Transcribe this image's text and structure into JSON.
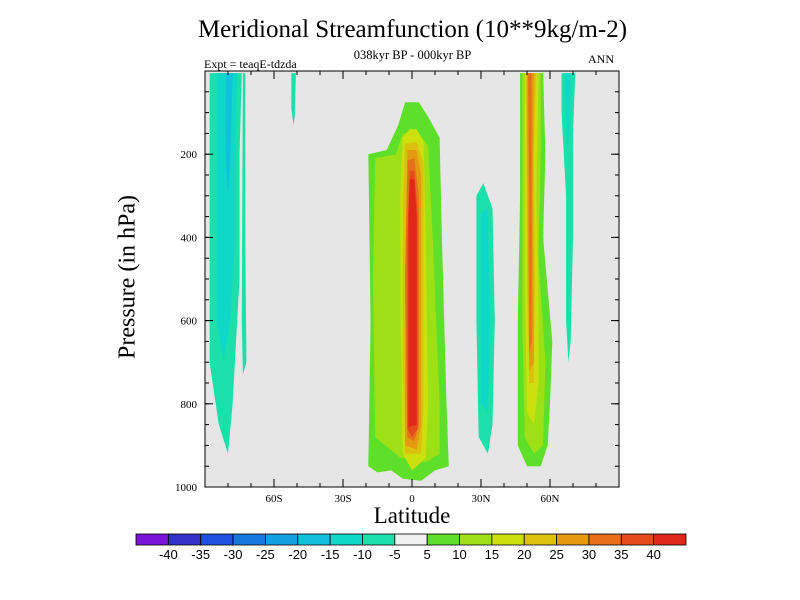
{
  "chart_data": {
    "type": "heatmap",
    "title": "Meridional Streamfunction (10**9kg/m-2)",
    "subtitle": "038kyr BP - 000kyr BP",
    "left_label": "Expt = teaqE-tdzda",
    "right_label": "ANN",
    "xlabel": "Latitude",
    "ylabel": "Pressure (in hPa)",
    "xlim": [
      -90,
      90
    ],
    "ylim": [
      1000,
      0
    ],
    "x_ticks": [
      {
        "value": -60,
        "label": "60S"
      },
      {
        "value": -30,
        "label": "30S"
      },
      {
        "value": 0,
        "label": "0"
      },
      {
        "value": 30,
        "label": "30N"
      },
      {
        "value": 60,
        "label": "60N"
      }
    ],
    "y_ticks": [
      {
        "value": 200,
        "label": "200"
      },
      {
        "value": 400,
        "label": "400"
      },
      {
        "value": 600,
        "label": "600"
      },
      {
        "value": 800,
        "label": "800"
      },
      {
        "value": 1000,
        "label": "1000"
      }
    ],
    "background_color": "#e6e6e6",
    "colorbar": {
      "labels": [
        "-40",
        "-35",
        "-30",
        "-25",
        "-20",
        "-15",
        "-10",
        "-5",
        "5",
        "10",
        "15",
        "20",
        "25",
        "30",
        "35",
        "40"
      ],
      "colors": [
        "#7a14d8",
        "#3232c8",
        "#1f4fdc",
        "#1778e0",
        "#12a0e0",
        "#10c0dc",
        "#10d8c8",
        "#1ae0aa",
        "#f0f0f0",
        "#5ee02a",
        "#9ee016",
        "#cce00e",
        "#dcc00e",
        "#e49a10",
        "#e6701a",
        "#e44a1a",
        "#e0281a"
      ]
    },
    "cells": [
      {
        "name": "sh-polar-cell",
        "sign": "negative",
        "levels": [
          {
            "level": -5,
            "poly": [
              [
                -88,
                5
              ],
              [
                -74,
                5
              ],
              [
                -75,
                200
              ],
              [
                -75,
                500
              ],
              [
                -78,
                800
              ],
              [
                -80,
                920
              ],
              [
                -84,
                850
              ],
              [
                -88,
                700
              ]
            ]
          },
          {
            "level": -10,
            "poly": [
              [
                -85,
                5
              ],
              [
                -76,
                5
              ],
              [
                -77,
                200
              ],
              [
                -77,
                400
              ],
              [
                -79,
                600
              ],
              [
                -82,
                700
              ],
              [
                -85,
                600
              ]
            ]
          },
          {
            "level": -15,
            "poly": [
              [
                -81,
                5
              ],
              [
                -78,
                5
              ],
              [
                -79,
                200
              ],
              [
                -80,
                300
              ],
              [
                -81,
                200
              ]
            ]
          }
        ]
      },
      {
        "name": "sh-narrow-cell",
        "sign": "negative",
        "levels": [
          {
            "level": -5,
            "poly": [
              [
                -73.5,
                5
              ],
              [
                -72.5,
                5
              ],
              [
                -72.5,
                400
              ],
              [
                -72,
                700
              ],
              [
                -73.5,
                730
              ],
              [
                -74,
                600
              ]
            ]
          }
        ]
      },
      {
        "name": "sh-upper-cell",
        "sign": "negative",
        "levels": [
          {
            "level": -5,
            "poly": [
              [
                -52.5,
                5
              ],
              [
                -50.5,
                5
              ],
              [
                -51,
                110
              ],
              [
                -51.5,
                130
              ],
              [
                -52.5,
                90
              ]
            ]
          }
        ]
      },
      {
        "name": "hadley-cell",
        "sign": "positive",
        "levels": [
          {
            "level": 5,
            "poly": [
              [
                -19,
                200
              ],
              [
                -11,
                190
              ],
              [
                -6,
                130
              ],
              [
                -3,
                75
              ],
              [
                3,
                75
              ],
              [
                7,
                110
              ],
              [
                12,
                160
              ],
              [
                13,
                400
              ],
              [
                15,
                800
              ],
              [
                16,
                950
              ],
              [
                10,
                960
              ],
              [
                4,
                985
              ],
              [
                -4,
                980
              ],
              [
                -9,
                960
              ],
              [
                -15,
                965
              ],
              [
                -19,
                950
              ],
              [
                -18,
                600
              ]
            ]
          },
          {
            "level": 10,
            "poly": [
              [
                -16,
                210
              ],
              [
                -7,
                200
              ],
              [
                -4,
                150
              ],
              [
                3,
                150
              ],
              [
                7,
                180
              ],
              [
                9,
                400
              ],
              [
                12,
                800
              ],
              [
                12,
                920
              ],
              [
                6,
                940
              ],
              [
                -5,
                930
              ],
              [
                -16,
                880
              ],
              [
                -17,
                500
              ]
            ]
          },
          {
            "level": 15,
            "poly": [
              [
                -4,
                160
              ],
              [
                -1,
                140
              ],
              [
                2,
                140
              ],
              [
                5,
                170
              ],
              [
                6,
                400
              ],
              [
                7,
                800
              ],
              [
                6,
                930
              ],
              [
                0,
                960
              ],
              [
                -4,
                920
              ],
              [
                -5,
                600
              ],
              [
                -5,
                300
              ]
            ]
          },
          {
            "level": 20,
            "poly": [
              [
                -3,
                175
              ],
              [
                2,
                170
              ],
              [
                5,
                220
              ],
              [
                5,
                800
              ],
              [
                4,
                920
              ],
              [
                -3,
                920
              ],
              [
                -4,
                700
              ],
              [
                -4,
                300
              ]
            ]
          },
          {
            "level": 25,
            "poly": [
              [
                -2,
                190
              ],
              [
                2,
                190
              ],
              [
                4,
                250
              ],
              [
                4,
                850
              ],
              [
                2,
                910
              ],
              [
                -3,
                900
              ],
              [
                -3,
                500
              ]
            ]
          },
          {
            "level": 30,
            "poly": [
              [
                -2,
                215
              ],
              [
                1,
                210
              ],
              [
                3,
                300
              ],
              [
                3,
                850
              ],
              [
                1,
                890
              ],
              [
                -2,
                880
              ],
              [
                -3,
                500
              ]
            ]
          },
          {
            "level": 35,
            "poly": [
              [
                -1,
                240
              ],
              [
                1,
                240
              ],
              [
                2.5,
                350
              ],
              [
                2.5,
                860
              ],
              [
                0,
                880
              ],
              [
                -2,
                860
              ],
              [
                -2,
                400
              ]
            ]
          },
          {
            "level": 40,
            "poly": [
              [
                -1,
                260
              ],
              [
                1,
                260
              ],
              [
                2,
                350
              ],
              [
                2,
                850
              ],
              [
                -1.5,
                855
              ],
              [
                -1.5,
                350
              ]
            ]
          }
        ]
      },
      {
        "name": "nh-subtropical-cell",
        "sign": "negative",
        "levels": [
          {
            "level": -5,
            "poly": [
              [
                28,
                300
              ],
              [
                31,
                270
              ],
              [
                35,
                330
              ],
              [
                36,
                600
              ],
              [
                35,
                850
              ],
              [
                33,
                920
              ],
              [
                29,
                880
              ],
              [
                28,
                600
              ]
            ]
          },
          {
            "level": -10,
            "poly": [
              [
                30,
                340
              ],
              [
                33,
                330
              ],
              [
                34,
                600
              ],
              [
                33,
                820
              ],
              [
                30,
                800
              ],
              [
                30,
                550
              ]
            ]
          }
        ]
      },
      {
        "name": "ferrel-cell",
        "sign": "positive",
        "levels": [
          {
            "level": 5,
            "poly": [
              [
                47,
                5
              ],
              [
                57,
                5
              ],
              [
                58,
                200
              ],
              [
                57,
                400
              ],
              [
                61,
                650
              ],
              [
                60,
                800
              ],
              [
                59,
                900
              ],
              [
                56,
                950
              ],
              [
                50,
                950
              ],
              [
                46,
                900
              ],
              [
                46,
                600
              ],
              [
                47,
                300
              ]
            ]
          },
          {
            "level": 10,
            "poly": [
              [
                48,
                5
              ],
              [
                56,
                5
              ],
              [
                56,
                200
              ],
              [
                55,
                450
              ],
              [
                58,
                700
              ],
              [
                57,
                900
              ],
              [
                53,
                920
              ],
              [
                49,
                880
              ],
              [
                48,
                600
              ]
            ]
          },
          {
            "level": 15,
            "poly": [
              [
                49,
                5
              ],
              [
                55,
                5
              ],
              [
                54,
                300
              ],
              [
                55,
                550
              ],
              [
                55,
                750
              ],
              [
                53,
                850
              ],
              [
                50,
                820
              ],
              [
                49,
                500
              ]
            ]
          },
          {
            "level": 20,
            "poly": [
              [
                49.5,
                5
              ],
              [
                54,
                5
              ],
              [
                53,
                200
              ],
              [
                53.5,
                500
              ],
              [
                53,
                750
              ],
              [
                51,
                750
              ],
              [
                50,
                500
              ]
            ]
          },
          {
            "level": 25,
            "poly": [
              [
                50,
                5
              ],
              [
                53,
                5
              ],
              [
                52.5,
                300
              ],
              [
                53,
                700
              ],
              [
                51,
                720
              ],
              [
                50.5,
                450
              ]
            ]
          },
          {
            "level": 30,
            "poly": [
              [
                50.5,
                5
              ],
              [
                52,
                5
              ],
              [
                52,
                250
              ],
              [
                52,
                650
              ],
              [
                51,
                680
              ],
              [
                51,
                300
              ]
            ]
          }
        ]
      },
      {
        "name": "nh-polar-cell",
        "sign": "negative",
        "levels": [
          {
            "level": -5,
            "poly": [
              [
                65,
                5
              ],
              [
                71,
                5
              ],
              [
                70,
                150
              ],
              [
                70,
                400
              ],
              [
                69,
                650
              ],
              [
                68,
                700
              ],
              [
                67,
                600
              ],
              [
                67,
                300
              ],
              [
                65,
                100
              ]
            ]
          },
          {
            "level": -10,
            "poly": [
              [
                66.5,
                5
              ],
              [
                69,
                5
              ],
              [
                68.5,
                150
              ],
              [
                67.5,
                200
              ],
              [
                67,
                100
              ]
            ]
          }
        ]
      }
    ]
  }
}
